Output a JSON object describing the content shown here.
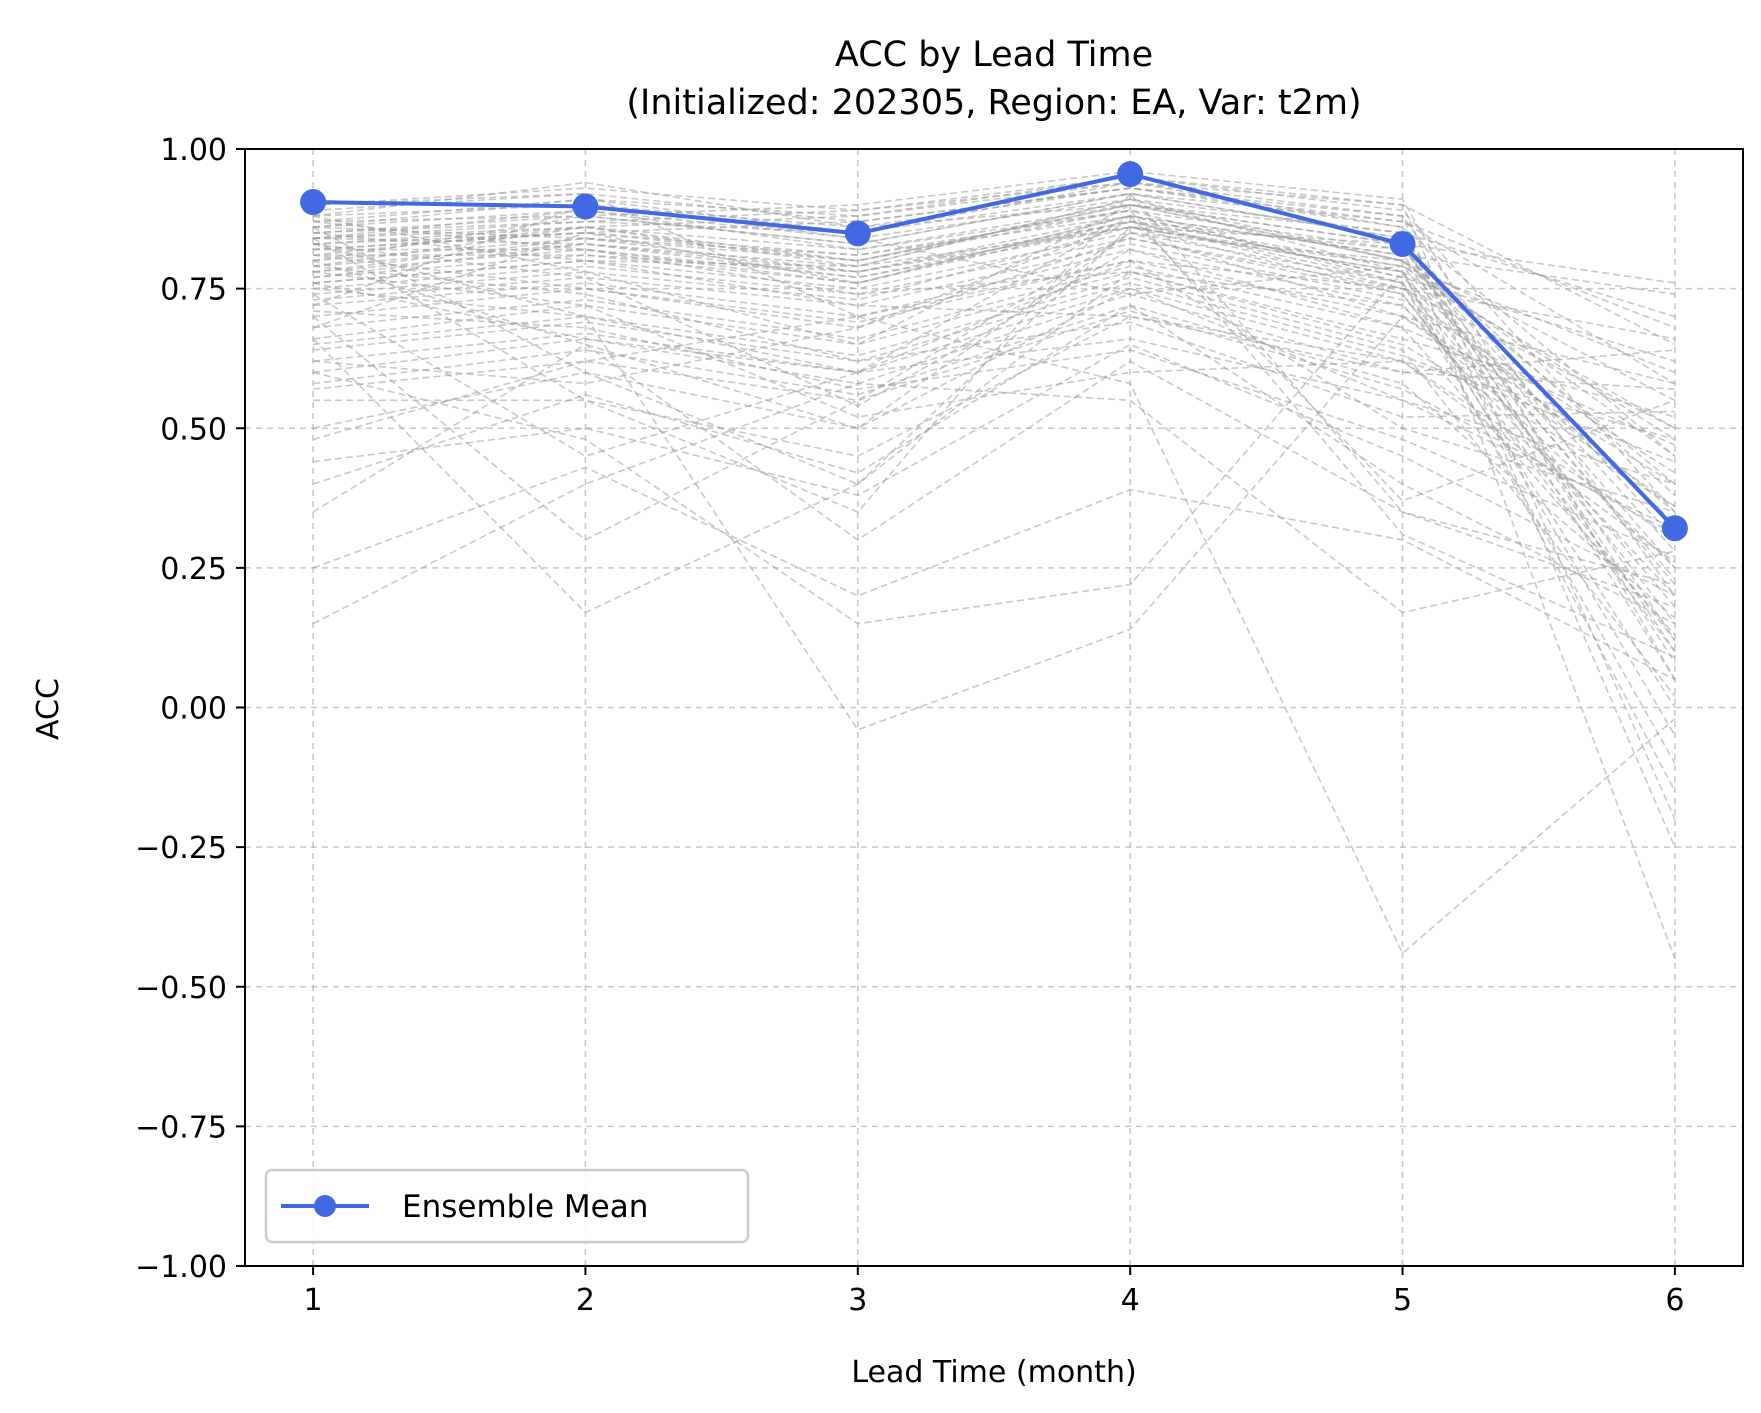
{
  "chart_data": {
    "type": "line",
    "title_line1": "ACC by Lead Time",
    "title_line2": "(Initialized: 202305, Region: EA, Var: t2m)",
    "xlabel": "Lead Time (month)",
    "ylabel": "ACC",
    "x": [
      1,
      2,
      3,
      4,
      5,
      6
    ],
    "xticks": [
      1,
      2,
      3,
      4,
      5,
      6
    ],
    "xtick_labels": [
      "1",
      "2",
      "3",
      "4",
      "5",
      "6"
    ],
    "xlim": [
      0.75,
      6.25
    ],
    "ylim": [
      -1.0,
      1.0
    ],
    "yticks": [
      -1.0,
      -0.75,
      -0.5,
      -0.25,
      0.0,
      0.25,
      0.5,
      0.75,
      1.0
    ],
    "ytick_labels": [
      "−1.00",
      "−0.75",
      "−0.50",
      "−0.25",
      "0.00",
      "0.25",
      "0.50",
      "0.75",
      "1.00"
    ],
    "grid": true,
    "legend_position": "lower-left",
    "ensemble_mean": {
      "name": "Ensemble Mean",
      "color": "#4169e1",
      "values": [
        0.905,
        0.897,
        0.849,
        0.955,
        0.83,
        0.321
      ]
    },
    "members_color": "#9a9a9a",
    "members": [
      [
        0.88,
        0.9,
        0.86,
        0.93,
        0.88,
        0.2
      ],
      [
        0.86,
        0.89,
        0.84,
        0.91,
        0.85,
        0.12
      ],
      [
        0.85,
        0.88,
        0.83,
        0.92,
        0.84,
        0.3
      ],
      [
        0.84,
        0.87,
        0.85,
        0.94,
        0.86,
        0.45
      ],
      [
        0.83,
        0.86,
        0.82,
        0.9,
        0.83,
        0.05
      ],
      [
        0.82,
        0.85,
        0.8,
        0.89,
        0.82,
        0.38
      ],
      [
        0.81,
        0.86,
        0.79,
        0.91,
        0.8,
        0.55
      ],
      [
        0.8,
        0.84,
        0.81,
        0.88,
        0.81,
        0.25
      ],
      [
        0.79,
        0.83,
        0.78,
        0.87,
        0.79,
        0.6
      ],
      [
        0.78,
        0.82,
        0.77,
        0.86,
        0.78,
        -0.05
      ],
      [
        0.77,
        0.81,
        0.76,
        0.88,
        0.77,
        0.33
      ],
      [
        0.76,
        0.8,
        0.75,
        0.85,
        0.76,
        0.18
      ],
      [
        0.75,
        0.79,
        0.74,
        0.84,
        0.75,
        0.5
      ],
      [
        0.74,
        0.78,
        0.73,
        0.86,
        0.74,
        0.1
      ],
      [
        0.73,
        0.77,
        0.72,
        0.83,
        0.73,
        0.42
      ],
      [
        0.87,
        0.91,
        0.88,
        0.95,
        0.89,
        0.35
      ],
      [
        0.89,
        0.92,
        0.87,
        0.93,
        0.87,
        0.58
      ],
      [
        0.9,
        0.93,
        0.89,
        0.94,
        0.9,
        0.65
      ],
      [
        0.86,
        0.84,
        0.8,
        0.9,
        0.8,
        0.22
      ],
      [
        0.84,
        0.83,
        0.79,
        0.91,
        0.78,
        0.15
      ],
      [
        0.83,
        0.85,
        0.81,
        0.89,
        0.76,
        -0.1
      ],
      [
        0.82,
        0.82,
        0.76,
        0.87,
        0.82,
        0.28
      ],
      [
        0.81,
        0.81,
        0.78,
        0.86,
        0.79,
        0.48
      ],
      [
        0.8,
        0.88,
        0.83,
        0.92,
        0.84,
        0.08
      ],
      [
        0.79,
        0.86,
        0.8,
        0.9,
        0.8,
        0.4
      ],
      [
        0.78,
        0.84,
        0.78,
        0.88,
        0.77,
        0.62
      ],
      [
        0.77,
        0.83,
        0.77,
        0.87,
        0.76,
        0.0
      ],
      [
        0.76,
        0.8,
        0.79,
        0.86,
        0.78,
        -0.15
      ],
      [
        0.72,
        0.76,
        0.7,
        0.82,
        0.72,
        0.2
      ],
      [
        0.7,
        0.75,
        0.69,
        0.8,
        0.7,
        0.36
      ],
      [
        0.68,
        0.73,
        0.66,
        0.79,
        0.68,
        0.13
      ],
      [
        0.66,
        0.72,
        0.65,
        0.78,
        0.66,
        0.52
      ],
      [
        0.65,
        0.7,
        0.63,
        0.77,
        0.64,
        0.02
      ],
      [
        0.64,
        0.69,
        0.62,
        0.76,
        0.63,
        0.44
      ],
      [
        0.62,
        0.67,
        0.6,
        0.75,
        0.62,
        0.26
      ],
      [
        0.6,
        0.66,
        0.58,
        0.74,
        0.6,
        0.57
      ],
      [
        0.58,
        0.64,
        0.56,
        0.72,
        0.58,
        0.16
      ],
      [
        0.57,
        0.62,
        0.55,
        0.71,
        0.57,
        0.31
      ],
      [
        0.88,
        0.78,
        0.65,
        0.9,
        0.85,
        0.7
      ],
      [
        0.86,
        0.6,
        0.4,
        0.86,
        0.83,
        0.76
      ],
      [
        0.84,
        0.55,
        0.35,
        0.92,
        0.87,
        0.68
      ],
      [
        0.83,
        0.7,
        0.6,
        0.88,
        0.81,
        0.74
      ],
      [
        0.81,
        0.75,
        0.68,
        0.87,
        0.75,
        0.66
      ],
      [
        0.8,
        0.65,
        0.5,
        0.85,
        0.7,
        0.58
      ],
      [
        0.87,
        0.88,
        0.9,
        0.96,
        0.91,
        0.05
      ],
      [
        0.85,
        0.87,
        0.89,
        0.95,
        0.9,
        -0.2
      ],
      [
        0.84,
        0.86,
        0.88,
        0.94,
        0.88,
        -0.25
      ],
      [
        0.82,
        0.85,
        0.87,
        0.93,
        0.86,
        -0.45
      ],
      [
        0.88,
        0.94,
        0.86,
        0.9,
        0.83,
        0.1
      ],
      [
        0.74,
        0.45,
        0.6,
        0.8,
        0.75,
        0.35
      ],
      [
        0.7,
        0.3,
        0.55,
        0.85,
        0.8,
        0.45
      ],
      [
        0.66,
        0.17,
        0.4,
        0.78,
        0.72,
        0.25
      ],
      [
        0.55,
        0.55,
        0.45,
        0.7,
        0.62,
        0.3
      ],
      [
        0.5,
        0.6,
        0.5,
        0.75,
        0.55,
        0.4
      ],
      [
        0.48,
        0.62,
        0.7,
        0.8,
        0.5,
        0.35
      ],
      [
        0.44,
        0.5,
        0.38,
        0.65,
        0.45,
        0.2
      ],
      [
        0.4,
        0.56,
        0.42,
        0.72,
        0.4,
        0.15
      ],
      [
        0.35,
        0.65,
        0.3,
        0.62,
        0.35,
        0.22
      ],
      [
        0.25,
        0.43,
        0.2,
        0.39,
        0.3,
        0.05
      ],
      [
        0.15,
        0.4,
        0.58,
        0.55,
        0.17,
        0.28
      ],
      [
        0.6,
        0.48,
        0.15,
        0.22,
        0.78,
        0.5
      ],
      [
        0.75,
        0.7,
        -0.04,
        0.14,
        0.7,
        0.4
      ],
      [
        0.9,
        0.92,
        0.7,
        0.58,
        -0.44,
        -0.02
      ],
      [
        0.78,
        0.72,
        0.52,
        0.6,
        0.62,
        0.48
      ],
      [
        0.68,
        0.85,
        0.76,
        0.88,
        0.37,
        0.55
      ],
      [
        0.85,
        0.8,
        0.72,
        0.7,
        0.6,
        0.64
      ],
      [
        0.72,
        0.9,
        0.84,
        0.74,
        0.79,
        0.23
      ],
      [
        0.76,
        0.66,
        0.6,
        0.66,
        0.55,
        0.32
      ],
      [
        0.83,
        0.77,
        0.54,
        0.82,
        0.68,
        0.47
      ],
      [
        0.62,
        0.58,
        0.68,
        0.84,
        0.74,
        0.12
      ],
      [
        0.87,
        0.82,
        0.74,
        0.78,
        0.65,
        0.36
      ],
      [
        0.79,
        0.74,
        0.62,
        0.69,
        0.52,
        0.53
      ],
      [
        0.71,
        0.68,
        0.57,
        0.64,
        0.48,
        0.27
      ],
      [
        0.86,
        0.91,
        0.85,
        0.92,
        0.35,
        0.18
      ],
      [
        0.84,
        0.89,
        0.82,
        0.89,
        0.31,
        0.09
      ]
    ]
  }
}
